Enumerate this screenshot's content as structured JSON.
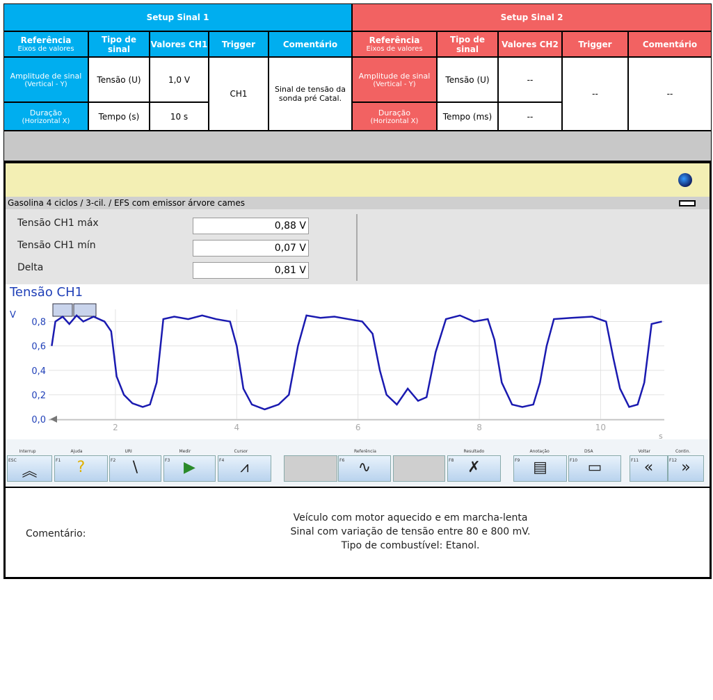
{
  "table": {
    "setup1": "Setup Sinal 1",
    "setup2": "Setup Sinal 2",
    "header1": [
      {
        "title": "Referência",
        "sub": "Eixos de valores"
      },
      {
        "title": "Tipo de sinal"
      },
      {
        "title": "Valores CH1"
      },
      {
        "title": "Trigger"
      },
      {
        "title": "Comentário"
      }
    ],
    "header2": [
      {
        "title": "Referência",
        "sub": "Eixos de valores"
      },
      {
        "title": "Tipo de sinal"
      },
      {
        "title": "Valores CH2"
      },
      {
        "title": "Trigger"
      },
      {
        "title": "Comentário"
      }
    ],
    "rows": [
      {
        "ref": "Amplitude de sinal",
        "ref_sub": "(Vertical - Y)",
        "type1": "Tensão (U)",
        "val1": "1,0 V",
        "ref2": "Amplitude de sinal",
        "ref2_sub": "(Vertical - Y)",
        "type2": "Tensão (U)",
        "val2": "--"
      },
      {
        "ref": "Duração",
        "ref_sub": "(Horizontal X)",
        "type1": "Tempo (s)",
        "val1": "10 s",
        "ref2": "Duração",
        "ref2_sub": "(Horizontal X)",
        "type2": "Tempo (ms)",
        "val2": "--"
      }
    ],
    "trigger1": "CH1",
    "comment1": "Sinal de tensão da sonda pré Catal.",
    "trigger2": "--",
    "comment2": "--"
  },
  "screen": {
    "status": "Gasolina 4 ciclos /  3-cil. / EFS com emissor árvore cames",
    "measurements": [
      {
        "label": "Tensão CH1 máx",
        "value": "0,88 V"
      },
      {
        "label": "Tensão CH1 mín",
        "value": "0,07 V"
      },
      {
        "label": "Delta",
        "value": "0,81 V"
      }
    ],
    "keys": [
      {
        "label": "Interrup",
        "key": "ESC"
      },
      {
        "label": "Ajuda",
        "key": "F1"
      },
      {
        "label": "URI",
        "key": "F2"
      },
      {
        "label": "Medir",
        "key": "F3"
      },
      {
        "label": "Cursor",
        "key": "F4"
      },
      {
        "label": "Referência",
        "key": "F6"
      },
      {
        "label": "Resultado",
        "key": "F8"
      },
      {
        "label": "Anotação",
        "key": "F9"
      },
      {
        "label": "DSA",
        "key": "F10"
      },
      {
        "label": "Voltar",
        "key": "F11"
      },
      {
        "label": "Contin.",
        "key": "F12"
      }
    ]
  },
  "chart_data": {
    "type": "line",
    "title": "Tensão CH1",
    "y_unit": "V",
    "x_unit": "s",
    "color": "#1a1ab0",
    "x": [
      0.95,
      1.01,
      1.13,
      1.24,
      1.36,
      1.47,
      1.64,
      1.82,
      1.93,
      2.02,
      2.14,
      2.28,
      2.45,
      2.57,
      2.68,
      2.79,
      2.97,
      3.2,
      3.43,
      3.66,
      3.89,
      4.0,
      4.11,
      4.25,
      4.46,
      4.69,
      4.86,
      5.01,
      5.15,
      5.38,
      5.61,
      5.84,
      6.07,
      6.24,
      6.36,
      6.47,
      6.64,
      6.82,
      6.99,
      7.13,
      7.28,
      7.45,
      7.68,
      7.91,
      8.14,
      8.25,
      8.37,
      8.54,
      8.71,
      8.89,
      9.0,
      9.11,
      9.23,
      9.52,
      9.86,
      10.09,
      10.21,
      10.32,
      10.47,
      10.61,
      10.72,
      10.84,
      11.01
    ],
    "values": [
      0.6,
      0.8,
      0.84,
      0.78,
      0.85,
      0.8,
      0.84,
      0.8,
      0.72,
      0.35,
      0.2,
      0.13,
      0.1,
      0.12,
      0.3,
      0.82,
      0.84,
      0.82,
      0.85,
      0.82,
      0.8,
      0.6,
      0.25,
      0.12,
      0.08,
      0.12,
      0.2,
      0.6,
      0.85,
      0.83,
      0.84,
      0.82,
      0.8,
      0.7,
      0.4,
      0.2,
      0.12,
      0.25,
      0.15,
      0.18,
      0.55,
      0.82,
      0.85,
      0.8,
      0.82,
      0.65,
      0.3,
      0.12,
      0.1,
      0.12,
      0.3,
      0.6,
      0.82,
      0.83,
      0.84,
      0.8,
      0.5,
      0.25,
      0.1,
      0.12,
      0.3,
      0.78,
      0.8
    ],
    "xlim": [
      0.9,
      11.05
    ],
    "ylim": [
      0,
      0.9
    ],
    "xticks": [
      2,
      4,
      6,
      8,
      10
    ],
    "yticks": [
      {
        "value": 0,
        "label": "0,0"
      },
      {
        "value": 0.2,
        "label": "0,2"
      },
      {
        "value": 0.4,
        "label": "0,4"
      },
      {
        "value": 0.6,
        "label": "0,6"
      },
      {
        "value": 0.8,
        "label": "0,8"
      }
    ],
    "grid": true
  },
  "comment": {
    "label": "Comentário:",
    "lines": [
      "Veículo com motor aquecido e em marcha-lenta",
      "Sinal com variação de tensão entre 80 e 800 mV.",
      "Tipo de combustível: Etanol."
    ]
  }
}
